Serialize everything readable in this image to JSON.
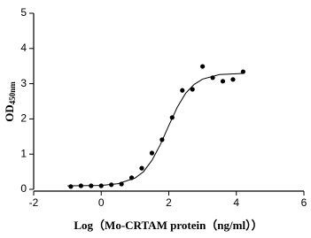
{
  "chart_data": {
    "type": "scatter",
    "xlabel": "Log（Mo-CRTAM protein（ng/ml））",
    "ylabel": "OD",
    "ylabel_sub": "450nm",
    "xlim": [
      -2,
      6
    ],
    "xticks": [
      -2,
      0,
      2,
      4,
      6
    ],
    "ylim": [
      0,
      5
    ],
    "yticks": [
      0,
      1,
      2,
      3,
      4,
      5
    ],
    "series": [
      {
        "type": "scatter",
        "color": "#000000",
        "x": [
          -0.9,
          -0.6,
          -0.3,
          0,
          0.3,
          0.6,
          0.9,
          1.2,
          1.5,
          1.8,
          2.1,
          2.4,
          2.7,
          3.0,
          3.3,
          3.6,
          3.9,
          4.2
        ],
        "values": [
          0.08,
          0.1,
          0.1,
          0.1,
          0.13,
          0.15,
          0.33,
          0.6,
          1.03,
          1.41,
          2.04,
          2.81,
          2.84,
          3.49,
          3.17,
          3.07,
          3.12,
          3.34
        ]
      },
      {
        "type": "line",
        "color": "#000000",
        "x": [
          -1,
          0,
          0.5,
          1.0,
          1.25,
          1.5,
          1.75,
          2.0,
          2.25,
          2.5,
          2.75,
          3.0,
          3.5,
          4.2
        ],
        "values": [
          0.1,
          0.11,
          0.16,
          0.32,
          0.5,
          0.82,
          1.27,
          1.81,
          2.33,
          2.73,
          2.98,
          3.13,
          3.26,
          3.29
        ]
      }
    ]
  }
}
